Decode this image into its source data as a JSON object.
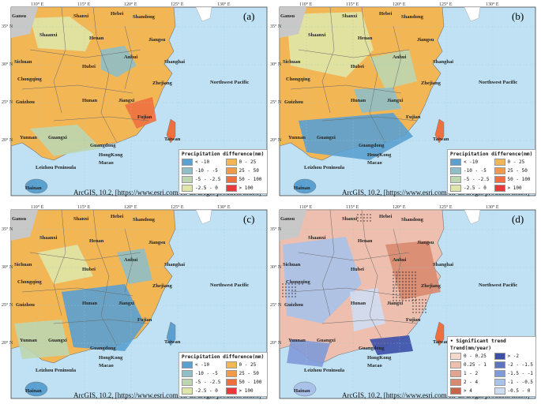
{
  "lon_ticks": [
    "110° E",
    "115° E",
    "120° E",
    "125° E",
    "130° E"
  ],
  "lat_ticks": [
    "35° N",
    "30° N",
    "25° N",
    "20° N"
  ],
  "credit": "ArcGIS, 10.2, [https://www.esri.com/en-us/arcgis/products/index]",
  "places": {
    "gansu": "Gansu",
    "shanxi": "Shanxi",
    "hebei": "Hebei",
    "shandong": "Shandong",
    "shaanxi": "Shaanxi",
    "henan": "Henan",
    "jiangsu": "Jiangsu",
    "anhui": "Anhui",
    "sichuan": "Sichuan",
    "hubei": "Hubei",
    "shanghai": "Shanghai",
    "chongqing": "Chongqing",
    "zhejiang": "Zhejiang",
    "nw_pacific": "Northwest Pacific",
    "guizhou": "Guizhou",
    "hunan": "Hunan",
    "jiangxi": "Jiangxi",
    "fujian": "Fujian",
    "yunnan": "Yunnan",
    "guangxi": "Guangxi",
    "guangdong": "Guangdong",
    "taiwan": "Taiwan",
    "hongkong": "HongKong",
    "macao": "Macao",
    "leizhou": "Leizhou Peninsula",
    "hainan": "Hainan"
  },
  "panels": [
    {
      "letter": "(a)"
    },
    {
      "letter": "(b)"
    },
    {
      "letter": "(c)"
    },
    {
      "letter": "(d)"
    }
  ],
  "legend_diff": {
    "title": "Precipitation difference(mm)",
    "items": [
      {
        "label": "< -10",
        "color": "#5aa0d0"
      },
      {
        "label": "0 - 25",
        "color": "#f3b655"
      },
      {
        "label": "-10 - -5",
        "color": "#8fbec6"
      },
      {
        "label": "25 - 50",
        "color": "#f09a4a"
      },
      {
        "label": "-5 - -2.5",
        "color": "#bcd6b0"
      },
      {
        "label": "50 - 100",
        "color": "#ee7040"
      },
      {
        "label": "-2.5 - 0",
        "color": "#dfe6a8"
      },
      {
        "label": "> 100",
        "color": "#e8383a"
      }
    ]
  },
  "legend_trend": {
    "sig_label": "Significant trend",
    "title": "Trend(mm/year)",
    "items": [
      {
        "label": "0 - 0.25",
        "color": "#f5d8cc"
      },
      {
        "label": "> -2",
        "color": "#3b4ea8"
      },
      {
        "label": "0.25 - 1",
        "color": "#eebfae"
      },
      {
        "label": "-2 - -1.5",
        "color": "#5d74c3"
      },
      {
        "label": "1 - 2",
        "color": "#e3a48f"
      },
      {
        "label": "-1.5 - -1",
        "color": "#7f9ad8"
      },
      {
        "label": "2 - 4",
        "color": "#d8896f"
      },
      {
        "label": "-1 - -0.5",
        "color": "#a9c2ea"
      },
      {
        "label": "> 4",
        "color": "#c9634a"
      },
      {
        "label": "-0.5 - 0",
        "color": "#cfddf3"
      }
    ]
  }
}
